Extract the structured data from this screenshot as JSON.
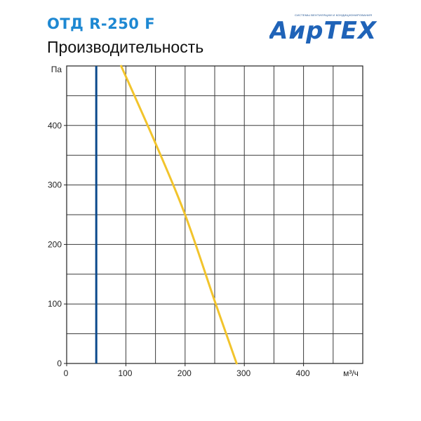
{
  "header": {
    "title": "ОТД R-250 F",
    "subtitle": "Производительность"
  },
  "logo": {
    "name": "АирТЕХ",
    "tagline": "СИСТЕМЫ ВЕНТИЛЯЦИИ И КОНДИЦИОНИРОВАНИЯ",
    "color": "#1f63b8"
  },
  "chart_data": {
    "type": "line",
    "xlabel": "м³/ч",
    "ylabel": "Па",
    "xlim": [
      0,
      500
    ],
    "ylim": [
      0,
      500
    ],
    "x_ticks": [
      0,
      100,
      200,
      300,
      400
    ],
    "y_ticks": [
      0,
      100,
      200,
      300,
      400
    ],
    "grid": true,
    "grid_x_step": 50,
    "grid_y_step": 50,
    "series": [
      {
        "color": "#f2c42c",
        "x": [
          92,
          150,
          200,
          250,
          287
        ],
        "y": [
          500,
          370,
          250,
          105,
          0
        ]
      }
    ],
    "vertical_lines": [
      {
        "x": 50,
        "color": "#0c4a8c"
      }
    ]
  }
}
